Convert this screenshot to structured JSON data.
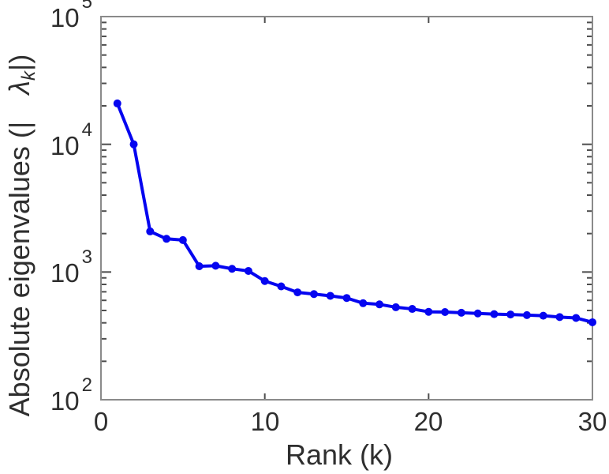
{
  "chart_data": {
    "type": "line",
    "title": "",
    "xlabel": "Rank (k)",
    "ylabel": "Absolute eigenvalues (| λ_k |)",
    "x": [
      1,
      2,
      3,
      4,
      5,
      6,
      7,
      8,
      9,
      10,
      11,
      12,
      13,
      14,
      15,
      16,
      17,
      18,
      19,
      20,
      21,
      22,
      23,
      24,
      25,
      26,
      27,
      28,
      29,
      30
    ],
    "values": [
      20900,
      10000,
      2080,
      1820,
      1780,
      1110,
      1120,
      1060,
      1020,
      850,
      772,
      693,
      672,
      651,
      626,
      570,
      558,
      530,
      514,
      488,
      486,
      480,
      474,
      468,
      465,
      460,
      455,
      444,
      437,
      404
    ],
    "series_name": "absolute-eigenvalues",
    "xlim": [
      0,
      30
    ],
    "ylim": [
      100,
      100000
    ],
    "y_scale": "log",
    "x_ticks": [
      0,
      10,
      20,
      30
    ],
    "x_tick_labels": [
      "0",
      "10",
      "20",
      "30"
    ],
    "y_tick_values": [
      100000,
      10000,
      1000,
      100
    ],
    "y_tick_labels": [
      {
        "base": "10",
        "exp": "5"
      },
      {
        "base": "10",
        "exp": "4"
      },
      {
        "base": "10",
        "exp": "3"
      },
      {
        "base": "10",
        "exp": "2"
      }
    ],
    "grid": false,
    "legend": "none",
    "marker": "filled-circle",
    "line_color": "#0505f0",
    "axis_color": "#8a8a8a",
    "tick_color": "#4d4d4d",
    "text_color": "#2e2e2e"
  },
  "labels": {
    "xlabel": "Rank (k)",
    "ylabel_prefix": "Absolute eigenvalues (|",
    "ylabel_lambda": "λ",
    "ylabel_sub": "k",
    "ylabel_suffix": "|)"
  }
}
